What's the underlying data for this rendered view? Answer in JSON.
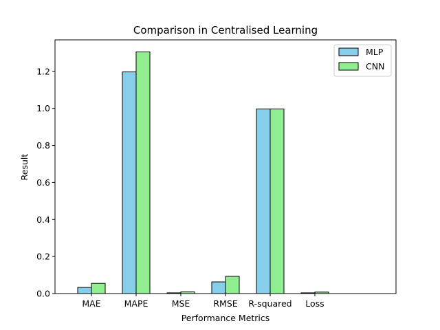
{
  "chart_data": {
    "type": "bar",
    "title": "Comparison in Centralised Learning",
    "xlabel": "Performance Metrics",
    "ylabel": "Result",
    "categories": [
      "MAE",
      "MAPE",
      "MSE",
      "RMSE",
      "R-squared",
      "Loss"
    ],
    "series": [
      {
        "name": "MLP",
        "color": "#87ceeb",
        "values": [
          0.033,
          1.197,
          0.004,
          0.063,
          0.997,
          0.004
        ]
      },
      {
        "name": "CNN",
        "color": "#90ee90",
        "values": [
          0.055,
          1.305,
          0.009,
          0.093,
          0.997,
          0.008
        ]
      }
    ],
    "ylim": [
      0,
      1.37
    ],
    "yticks": [
      "0.0",
      "0.2",
      "0.4",
      "0.6",
      "0.8",
      "1.0",
      "1.2"
    ],
    "grid": false,
    "legend": "top-right"
  }
}
